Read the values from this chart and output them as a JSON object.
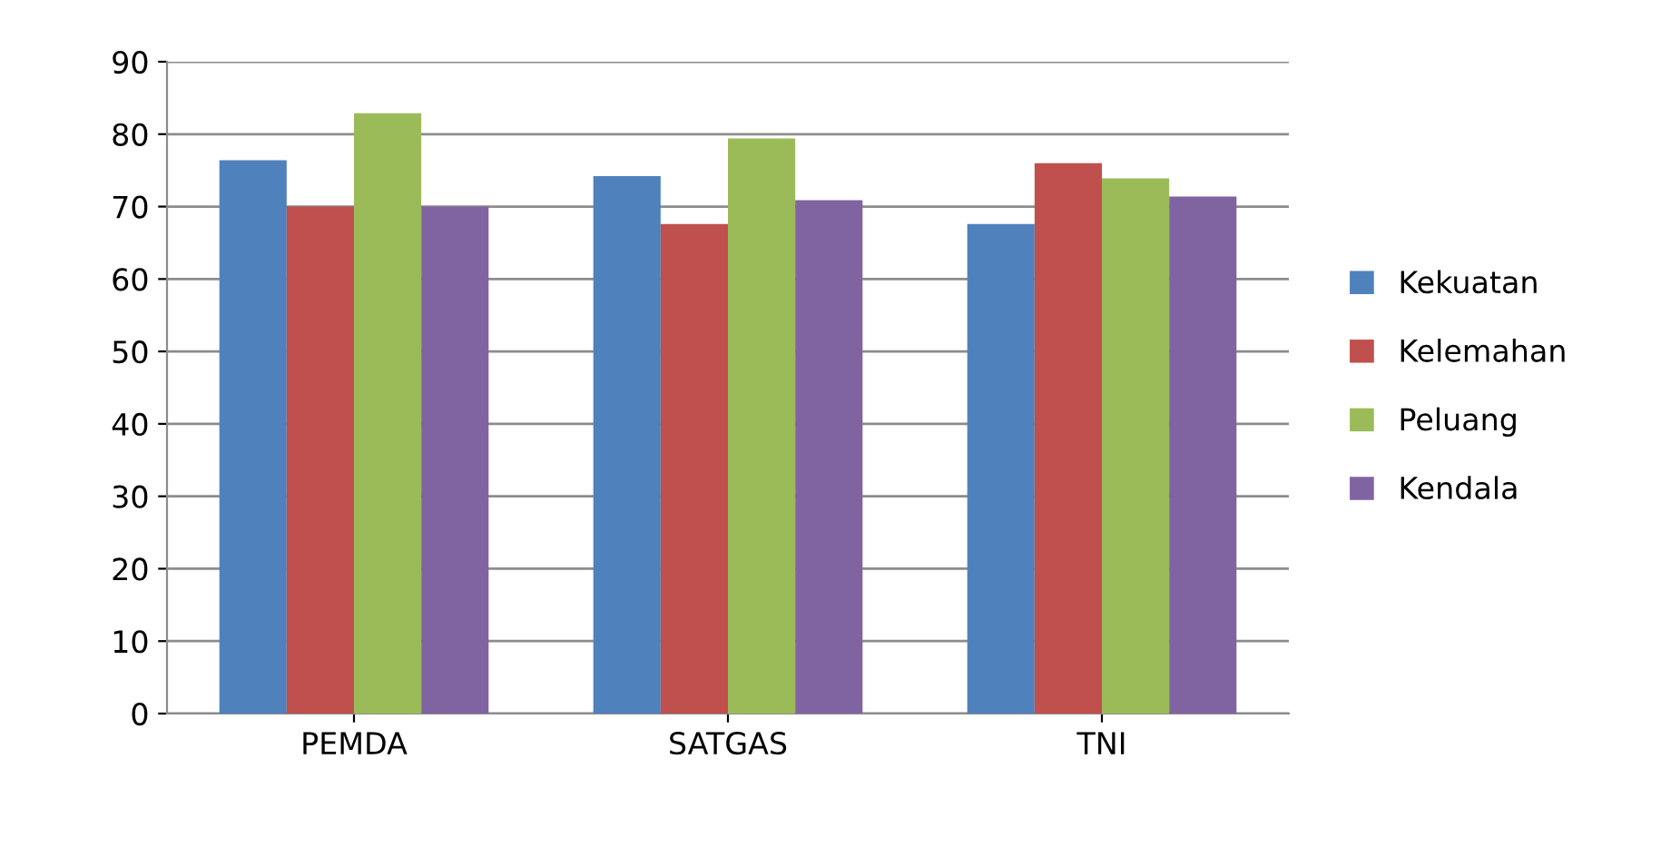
{
  "chart_data": {
    "type": "bar",
    "categories": [
      "PEMDA",
      "SATGAS",
      "TNI"
    ],
    "series": [
      {
        "name": "Kekuatan",
        "color": "#4f81bd",
        "values": [
          76.4,
          74.2,
          67.6
        ]
      },
      {
        "name": "Kelemahan",
        "color": "#c0504d",
        "values": [
          70,
          67.6,
          76.0
        ]
      },
      {
        "name": "Peluang",
        "color": "#9bbb59",
        "values": [
          82.9,
          79.4,
          73.9
        ]
      },
      {
        "name": "Kendala",
        "color": "#8064a2",
        "values": [
          70,
          70.9,
          71.4
        ]
      }
    ],
    "ylim": [
      0,
      90
    ],
    "yticks": [
      0,
      10,
      20,
      30,
      40,
      50,
      60,
      70,
      80,
      90
    ],
    "grid": "y",
    "legend": "right"
  }
}
